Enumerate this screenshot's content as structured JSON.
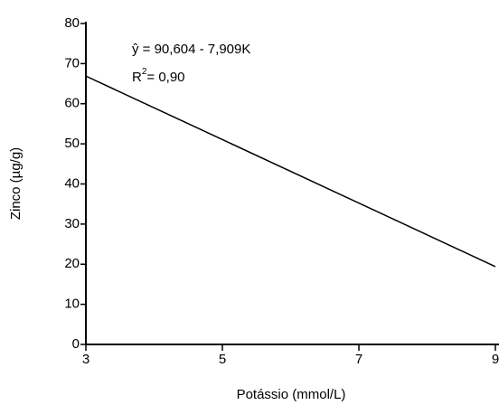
{
  "chart_data": {
    "type": "line",
    "x_label": "Potássio (mmol/L)",
    "y_label": "Zinco (µg/g)",
    "equation": "ŷ =  90,604 - 7,909K",
    "r2": {
      "base": "R",
      "sup": "2",
      "rest": "= 0,90"
    },
    "x": [
      3,
      9
    ],
    "values": [
      66.9,
      19.4
    ],
    "color": "#000000",
    "xlim": [
      3,
      9
    ],
    "xticks": [
      3,
      5,
      7,
      9
    ],
    "ylim": [
      0,
      80
    ],
    "yticks": [
      0,
      10,
      20,
      30,
      40,
      50,
      60,
      70,
      80
    ]
  }
}
